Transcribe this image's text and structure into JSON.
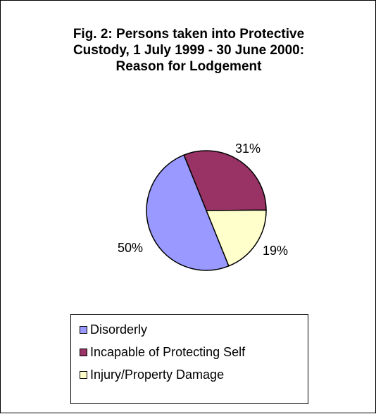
{
  "chart_data": {
    "type": "pie",
    "title": "Fig. 2: Persons taken into Protective\nCustody, 1 July 1999 - 30 June 2000:\nReason for Lodgement",
    "categories": [
      "Disorderly",
      "Incapable of Protecting Self",
      "Injury/Property Damage"
    ],
    "values": [
      50,
      31,
      19
    ],
    "data_labels": [
      "50%",
      "31%",
      "19%"
    ],
    "colors": [
      "#9999ff",
      "#993366",
      "#ffffcc"
    ],
    "legend_position": "bottom"
  }
}
